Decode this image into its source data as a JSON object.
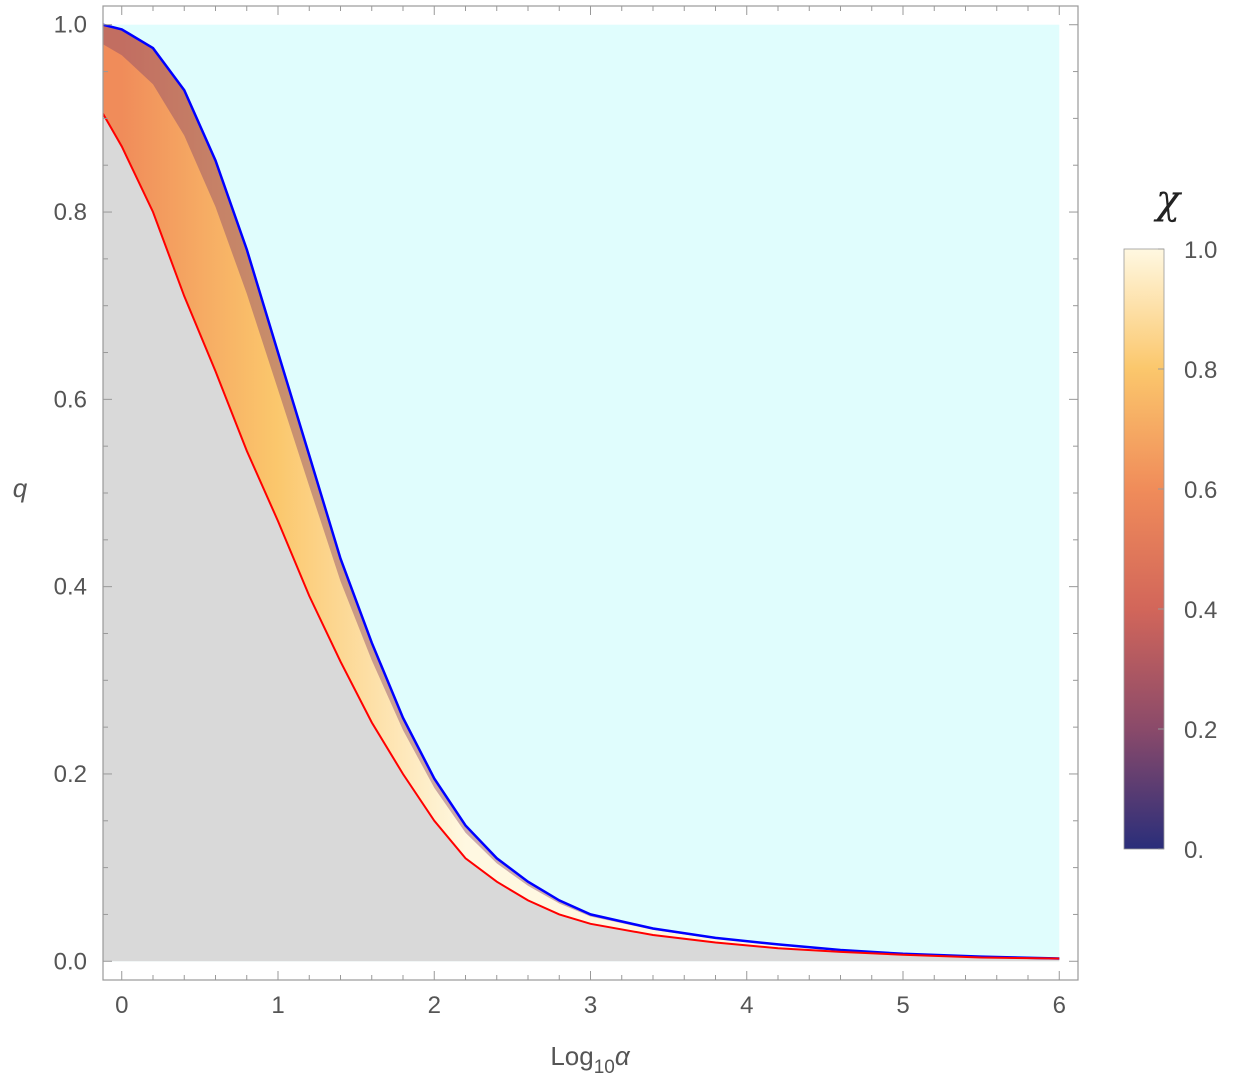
{
  "chart_data": {
    "type": "area",
    "xlabel": {
      "base": "Log",
      "subscript": "10",
      "symbol": "α"
    },
    "ylabel": "q",
    "xlim": [
      -0.12,
      6.12
    ],
    "ylim": [
      -0.02,
      1.02
    ],
    "xticks": [
      0,
      1,
      2,
      3,
      4,
      5,
      6
    ],
    "yticks": [
      0.0,
      0.2,
      0.4,
      0.6,
      0.8,
      1.0
    ],
    "xtick_labels": [
      "0",
      "1",
      "2",
      "3",
      "4",
      "5",
      "6"
    ],
    "ytick_labels": [
      "0.0",
      "0.2",
      "0.4",
      "0.6",
      "0.8",
      "1.0"
    ],
    "colors": {
      "upper_region": "#e0fdfd",
      "lower_region": "#d9d9d9",
      "upper_curve": "#0000ff",
      "lower_curve": "#ff0000",
      "frame": "#999999",
      "tick_text": "#555555"
    },
    "series": [
      {
        "line_color": "#0000ff",
        "x": [
          -0.12,
          0.0,
          0.2,
          0.4,
          0.6,
          0.8,
          1.0,
          1.2,
          1.4,
          1.6,
          1.8,
          2.0,
          2.2,
          2.4,
          2.6,
          2.8,
          3.0,
          3.4,
          3.8,
          4.2,
          4.6,
          5.0,
          5.5,
          6.0
        ],
        "y": [
          1.0,
          0.995,
          0.975,
          0.93,
          0.855,
          0.76,
          0.65,
          0.54,
          0.43,
          0.34,
          0.26,
          0.195,
          0.145,
          0.11,
          0.085,
          0.065,
          0.05,
          0.035,
          0.025,
          0.018,
          0.012,
          0.008,
          0.005,
          0.003
        ]
      },
      {
        "line_color": "#ff0000",
        "x": [
          -0.12,
          0.0,
          0.2,
          0.4,
          0.6,
          0.8,
          1.0,
          1.2,
          1.4,
          1.6,
          1.8,
          2.0,
          2.2,
          2.4,
          2.6,
          2.8,
          3.0,
          3.4,
          3.8,
          4.2,
          4.6,
          5.0,
          5.5,
          6.0
        ],
        "y": [
          0.905,
          0.87,
          0.8,
          0.71,
          0.63,
          0.545,
          0.47,
          0.39,
          0.32,
          0.255,
          0.2,
          0.15,
          0.11,
          0.085,
          0.065,
          0.05,
          0.04,
          0.028,
          0.02,
          0.014,
          0.01,
          0.007,
          0.004,
          0.003
        ]
      }
    ],
    "colorbar": {
      "title": "χ",
      "range": [
        0.0,
        1.0
      ],
      "tick_values": [
        0.0,
        0.2,
        0.4,
        0.6,
        0.8,
        1.0
      ],
      "tick_labels": [
        "0.",
        "0.2",
        "0.4",
        "0.6",
        "0.8",
        "1.0"
      ],
      "gradient_stops": [
        {
          "value": 0.0,
          "color": "#2a2e7a"
        },
        {
          "value": 0.2,
          "color": "#8a4a6a"
        },
        {
          "value": 0.4,
          "color": "#d2665a"
        },
        {
          "value": 0.6,
          "color": "#f08c5a"
        },
        {
          "value": 0.8,
          "color": "#fbc76c"
        },
        {
          "value": 1.0,
          "color": "#fff8e1"
        }
      ]
    }
  }
}
